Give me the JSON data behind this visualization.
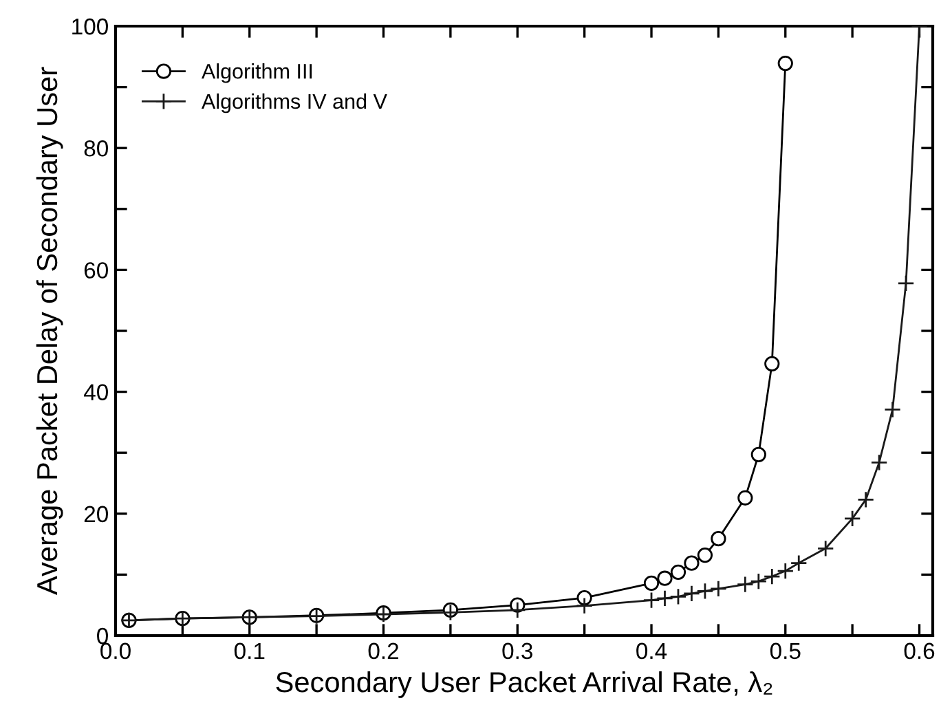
{
  "chart_data": {
    "type": "line",
    "xlabel": "Secondary User Packet Arrival Rate, λ₂",
    "ylabel": "Average Packet Delay of Secondary User",
    "xlim": [
      0,
      0.61
    ],
    "ylim": [
      0,
      100
    ],
    "xticks": [
      {
        "value": 0,
        "label": "0.0"
      },
      {
        "value": 0.05,
        "label": null
      },
      {
        "value": 0.1,
        "label": "0.1"
      },
      {
        "value": 0.15,
        "label": null
      },
      {
        "value": 0.2,
        "label": "0.2"
      },
      {
        "value": 0.25,
        "label": null
      },
      {
        "value": 0.3,
        "label": "0.3"
      },
      {
        "value": 0.35,
        "label": null
      },
      {
        "value": 0.4,
        "label": "0.4"
      },
      {
        "value": 0.45,
        "label": null
      },
      {
        "value": 0.5,
        "label": "0.5"
      },
      {
        "value": 0.55,
        "label": null
      },
      {
        "value": 0.6,
        "label": "0.6"
      }
    ],
    "yticks": [
      0,
      {
        "value": 10,
        "label": null
      },
      20,
      {
        "value": 30,
        "label": null
      },
      40,
      {
        "value": 50,
        "label": null
      },
      60,
      {
        "value": 70,
        "label": null
      },
      80,
      {
        "value": 90,
        "label": null
      },
      100
    ],
    "grid": false,
    "legend": "top left",
    "line_style": "solid",
    "series": [
      {
        "name": "Algorithm III",
        "color": "#000000",
        "marker": "circle",
        "x": [
          0.01,
          0.05,
          0.1,
          0.15,
          0.2,
          0.25,
          0.3,
          0.35,
          0.4,
          0.41,
          0.42,
          0.43,
          0.44,
          0.45,
          0.47,
          0.48,
          0.49,
          0.5
        ],
        "values": [
          2.5,
          2.8,
          3.0,
          3.3,
          3.7,
          4.2,
          5.0,
          6.2,
          8.6,
          9.4,
          10.4,
          11.9,
          13.2,
          15.9,
          22.6,
          29.7,
          44.6,
          93.9
        ]
      },
      {
        "name": "Algorithms IV and V",
        "color": "#1a1a1a",
        "marker": "cross",
        "x": [
          0.01,
          0.05,
          0.1,
          0.15,
          0.2,
          0.25,
          0.3,
          0.35,
          0.4,
          0.41,
          0.42,
          0.43,
          0.44,
          0.45,
          0.47,
          0.48,
          0.49,
          0.5,
          0.51,
          0.53,
          0.55,
          0.56,
          0.57,
          0.58,
          0.59,
          0.6
        ],
        "values": [
          2.5,
          2.8,
          3.0,
          3.2,
          3.5,
          3.8,
          4.2,
          4.9,
          5.8,
          6.1,
          6.4,
          6.9,
          7.3,
          7.7,
          8.4,
          8.9,
          9.7,
          10.6,
          11.9,
          14.3,
          19.2,
          22.3,
          28.4,
          37.1,
          57.8,
          100
        ]
      }
    ]
  }
}
